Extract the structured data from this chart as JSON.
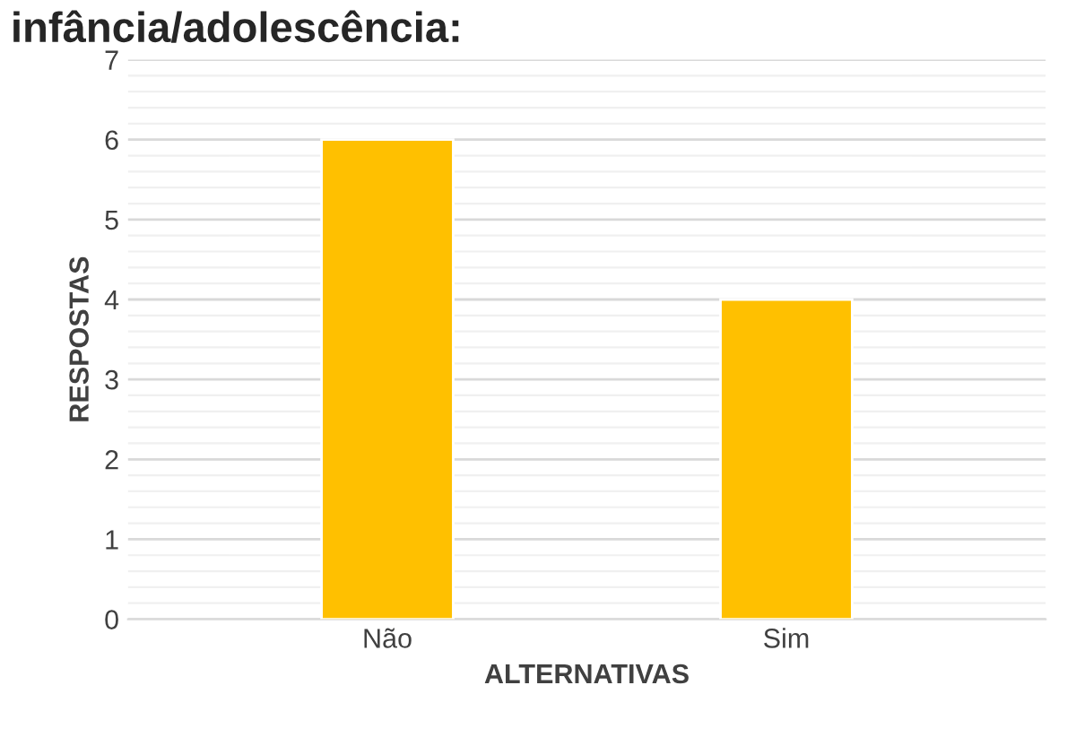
{
  "chart_data": {
    "type": "bar",
    "title": "infância/adolescência:",
    "categories": [
      "Não",
      "Sim"
    ],
    "values": [
      6,
      4
    ],
    "color": "#ffc000",
    "xlabel": "ALTERNATIVAS",
    "ylabel": "RESPOSTAS",
    "ylim": [
      0,
      7
    ],
    "yticks": [
      0,
      1,
      2,
      3,
      4,
      5,
      6,
      7
    ],
    "grid": "y"
  }
}
